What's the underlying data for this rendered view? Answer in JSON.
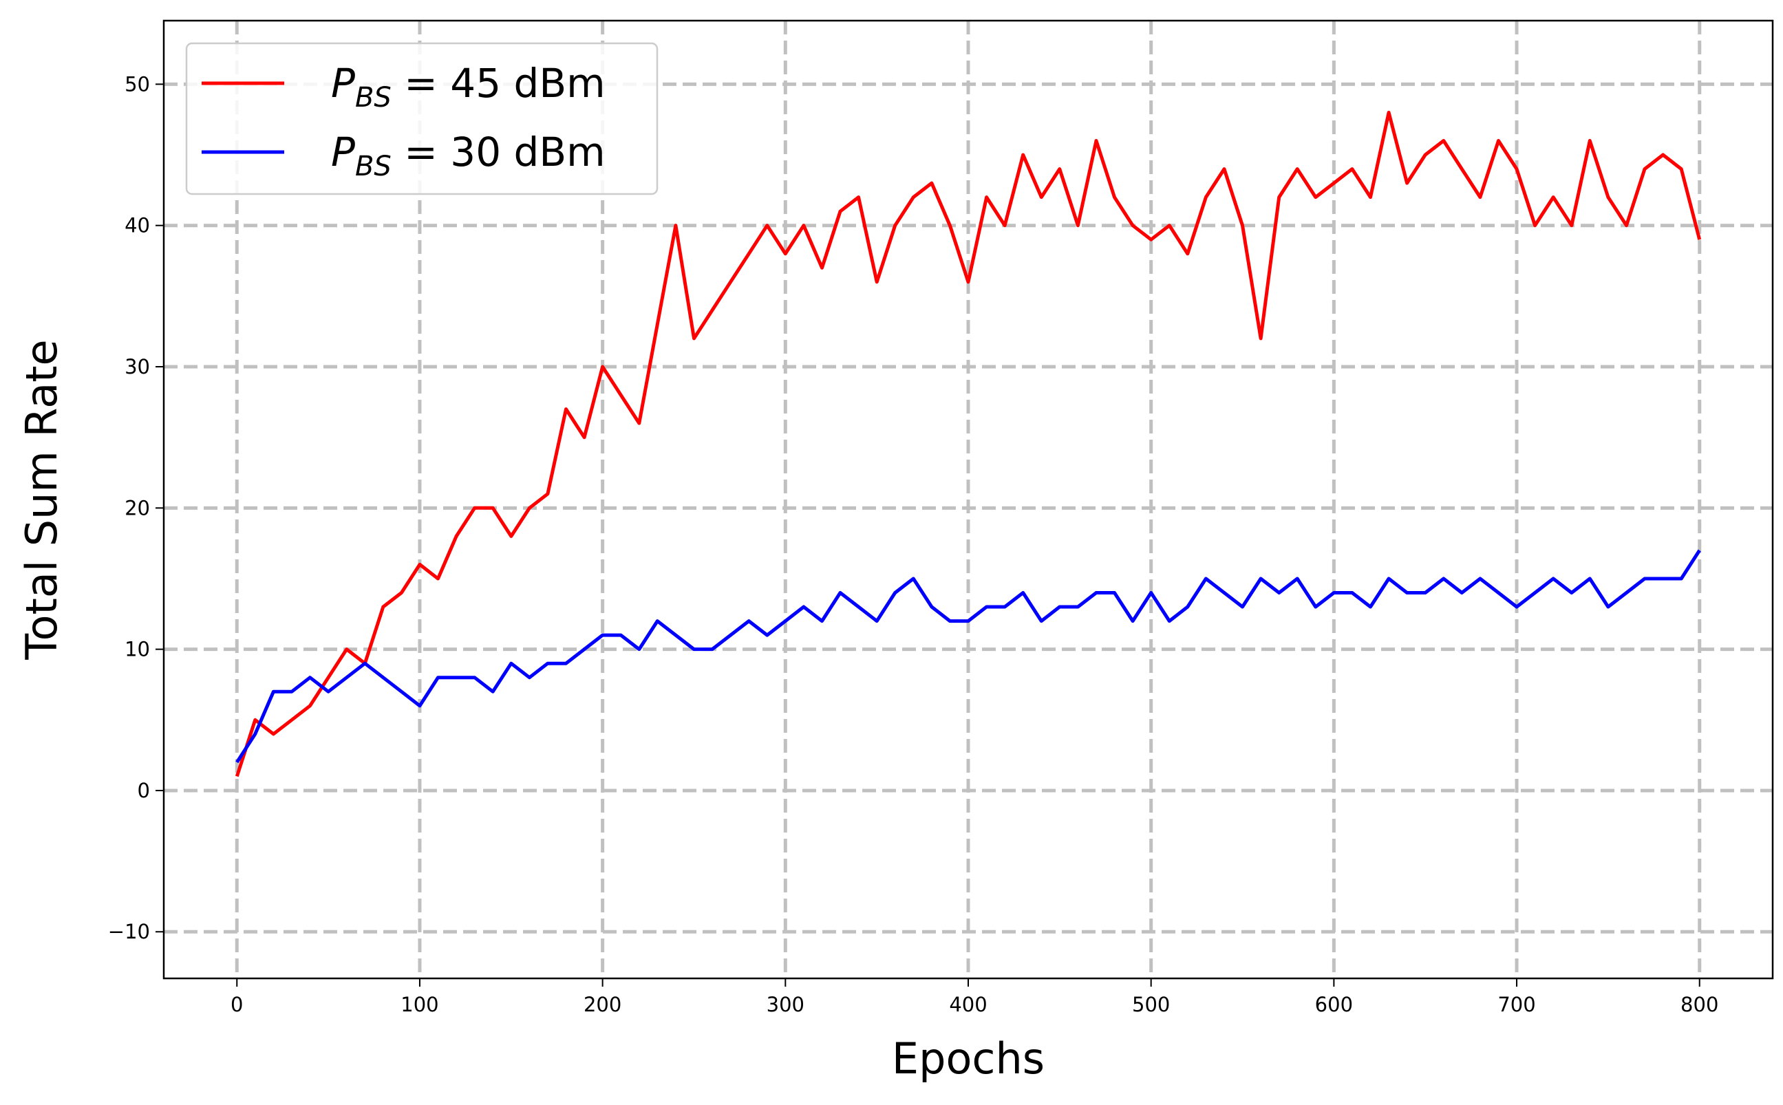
{
  "chart_data": {
    "type": "line",
    "xlabel": "Epochs",
    "ylabel": "Total Sum Rate",
    "x": [
      0,
      10,
      20,
      30,
      40,
      50,
      60,
      70,
      80,
      90,
      100,
      110,
      120,
      130,
      140,
      150,
      160,
      170,
      180,
      190,
      200,
      210,
      220,
      230,
      240,
      250,
      260,
      270,
      280,
      290,
      300,
      310,
      320,
      330,
      340,
      350,
      360,
      370,
      380,
      390,
      400,
      410,
      420,
      430,
      440,
      450,
      460,
      470,
      480,
      490,
      500,
      510,
      520,
      530,
      540,
      550,
      560,
      570,
      580,
      590,
      600,
      610,
      620,
      630,
      640,
      650,
      660,
      670,
      680,
      690,
      700,
      710,
      720,
      730,
      740,
      750,
      760,
      770,
      780,
      790,
      800
    ],
    "series": [
      {
        "name": "PBS = 45 dBm",
        "color": "#ff0000",
        "values": [
          1,
          5,
          4,
          5,
          6,
          8,
          10,
          9,
          13,
          14,
          16,
          15,
          18,
          20,
          20,
          18,
          20,
          21,
          27,
          25,
          30,
          28,
          26,
          33,
          40,
          32,
          34,
          36,
          38,
          40,
          38,
          40,
          37,
          41,
          42,
          36,
          40,
          42,
          43,
          40,
          36,
          42,
          40,
          45,
          42,
          44,
          40,
          46,
          42,
          40,
          39,
          40,
          38,
          42,
          44,
          40,
          32,
          42,
          44,
          42,
          43,
          44,
          42,
          48,
          43,
          45,
          46,
          44,
          42,
          46,
          44,
          40,
          42,
          40,
          46,
          42,
          40,
          44,
          45,
          44,
          39
        ]
      },
      {
        "name": "PBS = 30 dBm",
        "color": "#0000ff",
        "values": [
          2,
          4,
          7,
          7,
          8,
          7,
          8,
          9,
          8,
          7,
          6,
          8,
          8,
          8,
          7,
          9,
          8,
          9,
          9,
          10,
          11,
          11,
          10,
          12,
          11,
          10,
          10,
          11,
          12,
          11,
          12,
          13,
          12,
          14,
          13,
          12,
          14,
          15,
          13,
          12,
          12,
          13,
          13,
          14,
          12,
          13,
          13,
          14,
          14,
          12,
          14,
          12,
          13,
          15,
          14,
          13,
          15,
          14,
          15,
          13,
          14,
          14,
          13,
          15,
          14,
          14,
          15,
          14,
          15,
          14,
          13,
          14,
          15,
          14,
          15,
          13,
          14,
          15,
          15,
          15,
          17
        ]
      }
    ],
    "xlim": [
      -40,
      840
    ],
    "ylim": [
      -13.3,
      54.5
    ],
    "xticks": [
      0,
      100,
      200,
      300,
      400,
      500,
      600,
      700,
      800
    ],
    "yticks": [
      {
        "value": -10,
        "label": "−10"
      },
      0,
      10,
      20,
      30,
      40,
      50
    ],
    "grid": true,
    "legend": "upper left"
  }
}
